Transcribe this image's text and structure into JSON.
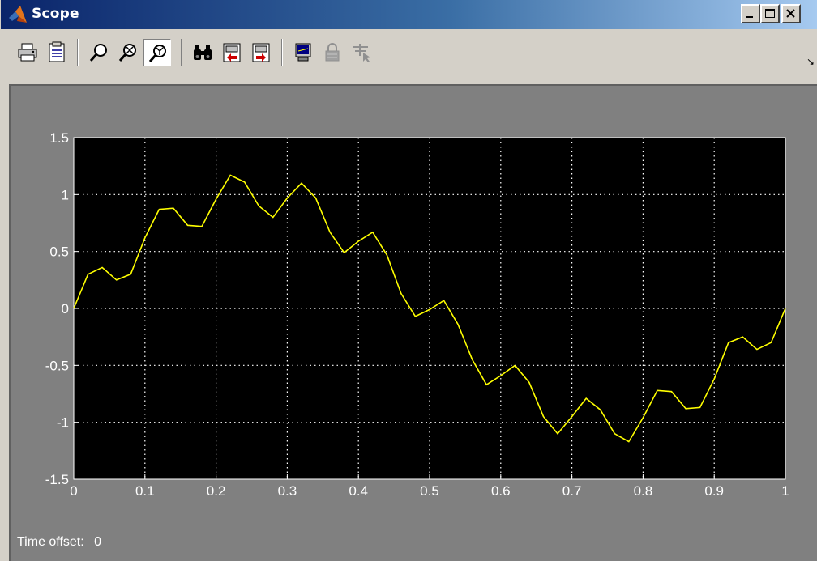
{
  "window": {
    "title": "Scope",
    "controls": {
      "minimize": "minimize",
      "maximize": "maximize",
      "close": "close"
    }
  },
  "toolbar": {
    "buttons": [
      {
        "name": "print-button",
        "icon": "printer-icon",
        "label": "Print"
      },
      {
        "name": "parameters-button",
        "icon": "parameters-icon",
        "label": "Parameters"
      },
      {
        "name": "zoom-button",
        "icon": "zoom-icon",
        "label": "Zoom"
      },
      {
        "name": "zoom-x-button",
        "icon": "zoom-x-icon",
        "label": "Zoom X-axis"
      },
      {
        "name": "zoom-y-button",
        "icon": "zoom-y-icon",
        "label": "Zoom Y-axis",
        "pressed": true
      },
      {
        "name": "autoscale-button",
        "icon": "binoculars-icon",
        "label": "Autoscale"
      },
      {
        "name": "save-axes-button",
        "icon": "save-axes-icon",
        "label": "Save current axes settings"
      },
      {
        "name": "restore-axes-button",
        "icon": "restore-axes-icon",
        "label": "Restore saved axes settings"
      },
      {
        "name": "floating-scope-button",
        "icon": "floating-scope-icon",
        "label": "Floating scope"
      },
      {
        "name": "lock-axes-button",
        "icon": "lock-icon",
        "label": "Lock/Unlock axes selection",
        "disabled": true
      },
      {
        "name": "signal-selection-button",
        "icon": "signal-selection-icon",
        "label": "Signal selection",
        "disabled": true
      }
    ]
  },
  "status": {
    "time_offset_label": "Time offset:",
    "time_offset_value": "0"
  },
  "colors": {
    "plot_background": "#000000",
    "figure_background": "#808080",
    "trace": "#ffff00",
    "grid": "#ffffff"
  },
  "chart_data": {
    "type": "line",
    "title": "",
    "xlabel": "",
    "ylabel": "",
    "xlim": [
      0,
      1
    ],
    "ylim": [
      -1.5,
      1.5
    ],
    "grid": true,
    "x_ticks": [
      "0",
      "0.1",
      "0.2",
      "0.3",
      "0.4",
      "0.5",
      "0.6",
      "0.7",
      "0.8",
      "0.9",
      "1"
    ],
    "y_ticks": [
      "1.5",
      "1",
      "0.5",
      "0",
      "-0.5",
      "-1",
      "-1.5"
    ],
    "series": [
      {
        "color": "#ffff00",
        "x": [
          0,
          0.02,
          0.04,
          0.06,
          0.08,
          0.1,
          0.12,
          0.14,
          0.16,
          0.18,
          0.2,
          0.22,
          0.24,
          0.26,
          0.28,
          0.3,
          0.32,
          0.34,
          0.36,
          0.38,
          0.4,
          0.42,
          0.44,
          0.46,
          0.48,
          0.5,
          0.52,
          0.54,
          0.56,
          0.58,
          0.6,
          0.62,
          0.64,
          0.66,
          0.68,
          0.7,
          0.72,
          0.74,
          0.76,
          0.78,
          0.8,
          0.82,
          0.84,
          0.86,
          0.88,
          0.9,
          0.92,
          0.94,
          0.96,
          0.98,
          1.0
        ],
        "y": [
          0,
          0.3,
          0.36,
          0.25,
          0.3,
          0.62,
          0.87,
          0.88,
          0.73,
          0.72,
          0.96,
          1.17,
          1.11,
          0.9,
          0.8,
          0.97,
          1.1,
          0.97,
          0.67,
          0.49,
          0.59,
          0.67,
          0.47,
          0.13,
          -0.07,
          -0.01,
          0.07,
          -0.14,
          -0.45,
          -0.67,
          -0.59,
          -0.5,
          -0.65,
          -0.95,
          -1.1,
          -0.95,
          -0.79,
          -0.89,
          -1.1,
          -1.17,
          -0.96,
          -0.72,
          -0.73,
          -0.88,
          -0.87,
          -0.62,
          -0.3,
          -0.25,
          -0.36,
          -0.3,
          0
        ]
      }
    ]
  }
}
